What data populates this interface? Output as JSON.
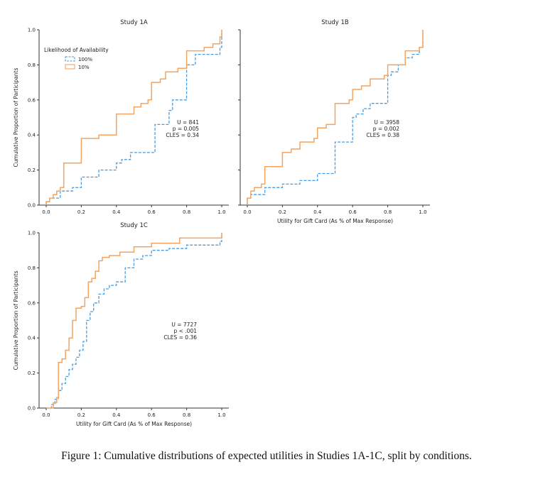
{
  "caption": "Figure 1: Cumulative distributions of expected utilities in Studies 1A-1C, split by conditions.",
  "legend": {
    "title": "Likelihood of Availability",
    "entries": [
      {
        "label": "100%",
        "color": "#4a9ce0",
        "dashed": true
      },
      {
        "label": "10%",
        "color": "#f4a460",
        "dashed": false
      }
    ]
  },
  "chart_data": [
    {
      "type": "line",
      "step": true,
      "title": "Study 1A",
      "xlabel": "",
      "ylabel": "Cumulative Proportion of Participants",
      "xlim": [
        0,
        1
      ],
      "ylim": [
        0,
        1
      ],
      "xticks": [
        "0.0",
        "0.2",
        "0.4",
        "0.6",
        "0.8",
        "1.0"
      ],
      "yticks": [
        "0.0",
        "0.2",
        "0.4",
        "0.6",
        "0.8",
        "1.0"
      ],
      "show_legend": true,
      "annotation": [
        "U = 841",
        "p = 0.005",
        "CLES = 0.34"
      ],
      "series": [
        {
          "name": "100%",
          "x": [
            0.0,
            0.0,
            0.02,
            0.08,
            0.1,
            0.15,
            0.2,
            0.23,
            0.3,
            0.4,
            0.43,
            0.48,
            0.6,
            0.62,
            0.68,
            0.7,
            0.72,
            0.78,
            0.8,
            0.85,
            0.93,
            0.97,
            0.99,
            1.0
          ],
          "y": [
            0.0,
            0.02,
            0.04,
            0.08,
            0.08,
            0.1,
            0.16,
            0.16,
            0.2,
            0.24,
            0.26,
            0.3,
            0.3,
            0.46,
            0.46,
            0.54,
            0.6,
            0.6,
            0.8,
            0.86,
            0.86,
            0.86,
            0.9,
            1.0
          ]
        },
        {
          "name": "10%",
          "x": [
            0.0,
            0.0,
            0.02,
            0.04,
            0.06,
            0.08,
            0.1,
            0.18,
            0.2,
            0.25,
            0.3,
            0.4,
            0.5,
            0.54,
            0.58,
            0.6,
            0.65,
            0.68,
            0.7,
            0.75,
            0.8,
            0.9,
            0.95,
            0.99,
            1.0
          ],
          "y": [
            0.0,
            0.02,
            0.04,
            0.06,
            0.08,
            0.1,
            0.24,
            0.24,
            0.38,
            0.38,
            0.4,
            0.52,
            0.56,
            0.58,
            0.6,
            0.7,
            0.72,
            0.76,
            0.76,
            0.78,
            0.88,
            0.9,
            0.92,
            0.96,
            1.0
          ]
        }
      ]
    },
    {
      "type": "line",
      "step": true,
      "title": "Study 1B",
      "xlabel": "Utility for Gift Card (As % of Max Response)",
      "ylabel": "",
      "xlim": [
        0,
        1
      ],
      "ylim": [
        0,
        1
      ],
      "xticks": [
        "0.0",
        "0.2",
        "0.4",
        "0.6",
        "0.8",
        "1.0"
      ],
      "yticks": [
        "",
        "",
        "",
        "",
        "",
        ""
      ],
      "show_legend": false,
      "annotation": [
        "U = 3958",
        "p = 0.002",
        "CLES = 0.38"
      ],
      "series": [
        {
          "name": "100%",
          "x": [
            0.0,
            0.0,
            0.02,
            0.1,
            0.2,
            0.3,
            0.4,
            0.5,
            0.6,
            0.62,
            0.66,
            0.7,
            0.8,
            0.82,
            0.86,
            0.9,
            0.94,
            0.98,
            1.0
          ],
          "y": [
            0.0,
            0.04,
            0.06,
            0.1,
            0.12,
            0.14,
            0.18,
            0.36,
            0.5,
            0.52,
            0.55,
            0.58,
            0.74,
            0.76,
            0.8,
            0.84,
            0.86,
            0.9,
            1.0
          ]
        },
        {
          "name": "10%",
          "x": [
            0.0,
            0.0,
            0.02,
            0.04,
            0.08,
            0.1,
            0.18,
            0.2,
            0.25,
            0.3,
            0.38,
            0.4,
            0.45,
            0.5,
            0.58,
            0.6,
            0.65,
            0.7,
            0.78,
            0.8,
            0.9,
            0.98,
            1.0
          ],
          "y": [
            0.0,
            0.04,
            0.08,
            0.1,
            0.12,
            0.22,
            0.22,
            0.3,
            0.32,
            0.36,
            0.38,
            0.44,
            0.46,
            0.58,
            0.6,
            0.66,
            0.68,
            0.72,
            0.74,
            0.8,
            0.88,
            0.9,
            1.0
          ]
        }
      ]
    },
    {
      "type": "line",
      "step": true,
      "title": "Study 1C",
      "xlabel": "Utility for Gift Card (As % of Max Response)",
      "ylabel": "Cumulative Proportion of Participants",
      "xlim": [
        0,
        1
      ],
      "ylim": [
        0,
        1
      ],
      "xticks": [
        "0.0",
        "0.2",
        "0.4",
        "0.6",
        "0.8",
        "1.0"
      ],
      "yticks": [
        "0.0",
        "0.2",
        "0.4",
        "0.6",
        "0.8",
        "1.0"
      ],
      "show_legend": false,
      "annotation": [
        "U = 7727",
        "p < .001",
        "CLES = 0.36"
      ],
      "series": [
        {
          "name": "100%",
          "x": [
            0.0,
            0.03,
            0.05,
            0.07,
            0.09,
            0.11,
            0.13,
            0.15,
            0.17,
            0.19,
            0.21,
            0.23,
            0.25,
            0.27,
            0.3,
            0.33,
            0.36,
            0.4,
            0.45,
            0.5,
            0.55,
            0.6,
            0.7,
            0.8,
            0.99,
            1.0
          ],
          "y": [
            0.0,
            0.02,
            0.05,
            0.1,
            0.14,
            0.18,
            0.22,
            0.25,
            0.29,
            0.33,
            0.38,
            0.5,
            0.55,
            0.6,
            0.65,
            0.68,
            0.7,
            0.72,
            0.8,
            0.85,
            0.87,
            0.9,
            0.91,
            0.93,
            0.95,
            1.0
          ]
        },
        {
          "name": "10%",
          "x": [
            0.0,
            0.04,
            0.06,
            0.07,
            0.09,
            0.11,
            0.13,
            0.15,
            0.17,
            0.2,
            0.22,
            0.24,
            0.26,
            0.28,
            0.3,
            0.32,
            0.36,
            0.42,
            0.5,
            0.6,
            0.76,
            0.99,
            1.0
          ],
          "y": [
            0.0,
            0.03,
            0.06,
            0.26,
            0.28,
            0.33,
            0.4,
            0.5,
            0.57,
            0.58,
            0.63,
            0.72,
            0.74,
            0.78,
            0.84,
            0.86,
            0.87,
            0.89,
            0.92,
            0.94,
            0.97,
            0.97,
            1.0
          ]
        }
      ]
    }
  ]
}
